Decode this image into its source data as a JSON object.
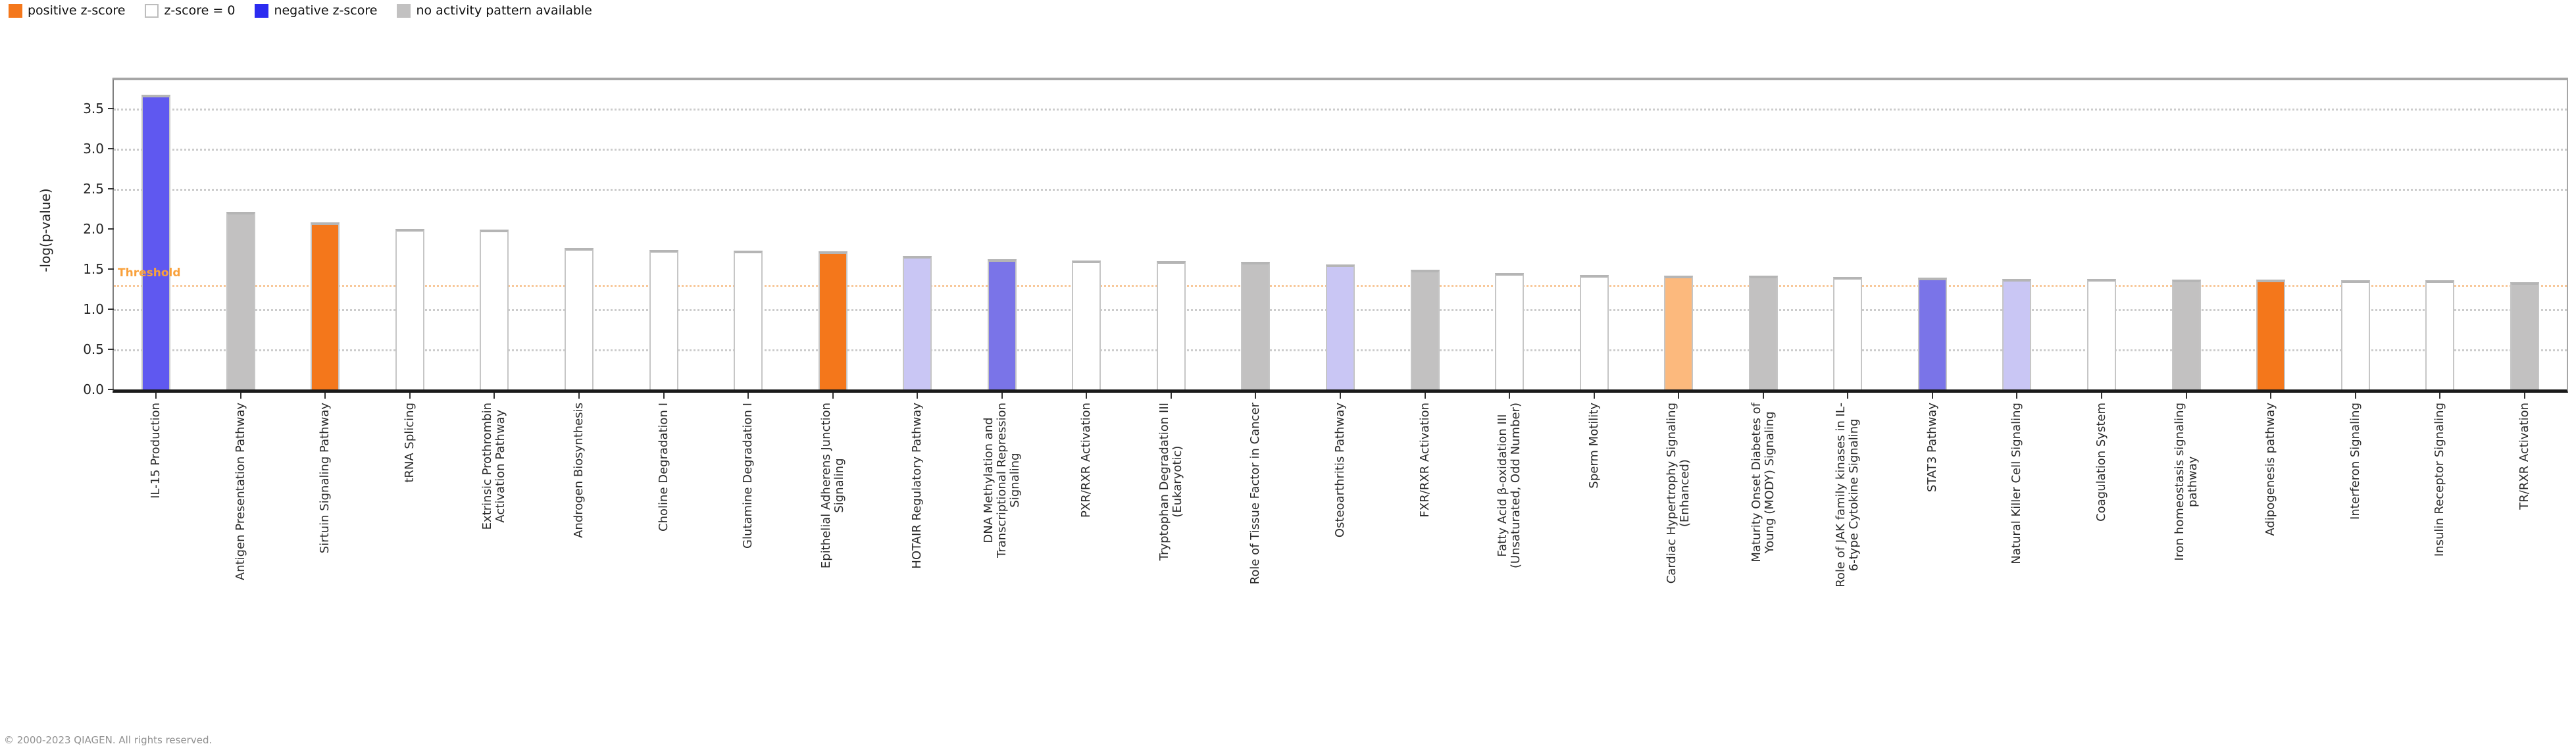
{
  "chart_data": {
    "type": "bar",
    "title": "",
    "ylabel": "-log(p-value)",
    "xlabel": "",
    "ylim": [
      0,
      3.85
    ],
    "yticks": [
      0.0,
      0.5,
      1.0,
      1.5,
      2.0,
      2.5,
      3.0,
      3.5
    ],
    "gridlines_at": [
      0.5,
      1.0,
      2.5,
      3.0,
      3.5
    ],
    "grid": "dotted horizontal",
    "legend_position": "top-left",
    "threshold": {
      "label": "Threshold",
      "value": 1.3
    },
    "colors": {
      "positive": "#F4771B",
      "positive-light": "#FCB97D",
      "zero": "#FFFFFF",
      "negative": "#5F58F0",
      "negative-mid": "#7A74E8",
      "negative-light": "#C9C6F4",
      "none": "#C2C1C1",
      "threshold": "#F9A13C",
      "legend_negative": "#2B2BF0"
    },
    "legend": [
      {
        "label": "positive z-score",
        "color": "#F4771B",
        "swatch": "positive"
      },
      {
        "label": "z-score = 0",
        "color": "#FFFFFF",
        "swatch": "zero"
      },
      {
        "label": "negative z-score",
        "color": "#2B2BF0",
        "swatch": "negative"
      },
      {
        "label": "no activity pattern available",
        "color": "#C2C1C1",
        "swatch": "none"
      }
    ],
    "bars": [
      {
        "label": "IL-15 Production",
        "lines": [
          "IL-15 Production"
        ],
        "value": 3.67,
        "z": "negative"
      },
      {
        "label": "Antigen Presentation Pathway",
        "lines": [
          "Antigen Presentation Pathway"
        ],
        "value": 2.21,
        "z": "none"
      },
      {
        "label": "Sirtuin Signaling Pathway",
        "lines": [
          "Sirtuin Signaling Pathway"
        ],
        "value": 2.08,
        "z": "positive"
      },
      {
        "label": "tRNA Splicing",
        "lines": [
          "tRNA Splicing"
        ],
        "value": 2.0,
        "z": "zero"
      },
      {
        "label": "Extrinsic Prothrombin Activation Pathway",
        "lines": [
          "Extrinsic Prothrombin",
          "Activation Pathway"
        ],
        "value": 1.99,
        "z": "zero"
      },
      {
        "label": "Androgen Biosynthesis",
        "lines": [
          "Androgen Biosynthesis"
        ],
        "value": 1.76,
        "z": "zero"
      },
      {
        "label": "Choline Degradation I",
        "lines": [
          "Choline Degradation I"
        ],
        "value": 1.74,
        "z": "zero"
      },
      {
        "label": "Glutamine Degradation I",
        "lines": [
          "Glutamine Degradation I"
        ],
        "value": 1.73,
        "z": "zero"
      },
      {
        "label": "Epithelial Adherens Junction Signaling",
        "lines": [
          "Epithelial Adherens Junction",
          "Signaling"
        ],
        "value": 1.72,
        "z": "positive"
      },
      {
        "label": "HOTAIR Regulatory Pathway",
        "lines": [
          "HOTAIR Regulatory Pathway"
        ],
        "value": 1.66,
        "z": "negative-light"
      },
      {
        "label": "DNA Methylation and Transcriptional Repression Signaling",
        "lines": [
          "DNA Methylation and",
          "Transcriptional Repression",
          "Signaling"
        ],
        "value": 1.62,
        "z": "negative-mid"
      },
      {
        "label": "PXR/RXR Activation",
        "lines": [
          "PXR/RXR Activation"
        ],
        "value": 1.61,
        "z": "zero"
      },
      {
        "label": "Tryptophan Degradation III (Eukaryotic)",
        "lines": [
          "Tryptophan Degradation III",
          "(Eukaryotic)"
        ],
        "value": 1.6,
        "z": "zero"
      },
      {
        "label": "Role of Tissue Factor in Cancer",
        "lines": [
          "Role of Tissue Factor in Cancer"
        ],
        "value": 1.59,
        "z": "none"
      },
      {
        "label": "Osteoarthritis Pathway",
        "lines": [
          "Osteoarthritis Pathway"
        ],
        "value": 1.56,
        "z": "negative-light"
      },
      {
        "label": "FXR/RXR Activation",
        "lines": [
          "FXR/RXR Activation"
        ],
        "value": 1.49,
        "z": "none"
      },
      {
        "label": "Fatty Acid β-oxidation III (Unsaturated, Odd Number)",
        "lines": [
          "Fatty Acid β-oxidation III",
          "(Unsaturated, Odd Number)"
        ],
        "value": 1.45,
        "z": "zero"
      },
      {
        "label": "Sperm Motility",
        "lines": [
          "Sperm Motility"
        ],
        "value": 1.43,
        "z": "zero"
      },
      {
        "label": "Cardiac Hypertrophy Signaling (Enhanced)",
        "lines": [
          "Cardiac Hypertrophy Signaling",
          "(Enhanced)"
        ],
        "value": 1.42,
        "z": "positive-light"
      },
      {
        "label": "Maturity Onset Diabetes of Young (MODY) Signaling",
        "lines": [
          "Maturity Onset Diabetes of",
          "Young (MODY) Signaling"
        ],
        "value": 1.42,
        "z": "none"
      },
      {
        "label": "Role of JAK family kinases in IL-6-type Cytokine Signaling",
        "lines": [
          "Role of JAK family kinases in IL-",
          "6-type Cytokine Signaling"
        ],
        "value": 1.4,
        "z": "zero"
      },
      {
        "label": "STAT3 Pathway",
        "lines": [
          "STAT3 Pathway"
        ],
        "value": 1.39,
        "z": "negative-mid"
      },
      {
        "label": "Natural Killer Cell Signaling",
        "lines": [
          "Natural Killer Cell Signaling"
        ],
        "value": 1.38,
        "z": "negative-light"
      },
      {
        "label": "Coagulation System",
        "lines": [
          "Coagulation System"
        ],
        "value": 1.38,
        "z": "zero"
      },
      {
        "label": "Iron homeostasis signaling pathway",
        "lines": [
          "Iron homeostasis signaling",
          "pathway"
        ],
        "value": 1.37,
        "z": "none"
      },
      {
        "label": "Adipogenesis pathway",
        "lines": [
          "Adipogenesis pathway"
        ],
        "value": 1.37,
        "z": "positive"
      },
      {
        "label": "Interferon Signaling",
        "lines": [
          "Interferon Signaling"
        ],
        "value": 1.36,
        "z": "zero"
      },
      {
        "label": "Insulin Receptor Signaling",
        "lines": [
          "Insulin Receptor Signaling"
        ],
        "value": 1.36,
        "z": "zero"
      },
      {
        "label": "TR/RXR Activation",
        "lines": [
          "TR/RXR Activation"
        ],
        "value": 1.34,
        "z": "none"
      }
    ],
    "footer": "© 2000-2023 QIAGEN. All rights reserved."
  }
}
